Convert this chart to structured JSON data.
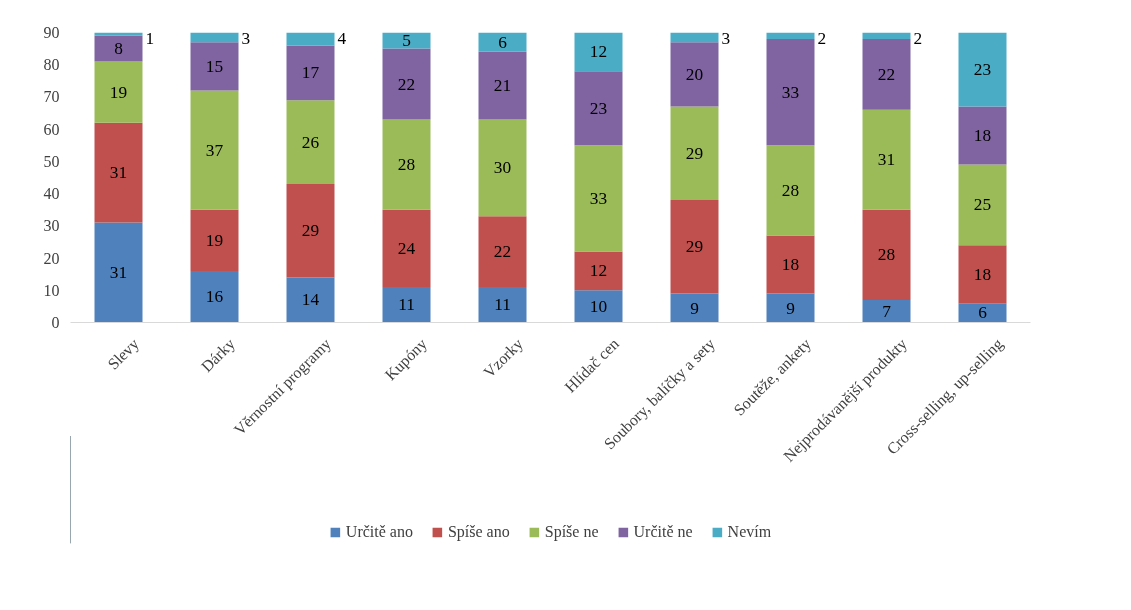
{
  "chart_data": {
    "type": "bar",
    "stacked": true,
    "data_labels": true,
    "grid": false,
    "legend": "bottom",
    "categories": [
      "Slevy",
      "Dárky",
      "Věrnostní programy",
      "Kupóny",
      "Vzorky",
      "Hlídač cen",
      "Soubory, balíčky a sety",
      "Soutěže, ankety",
      "Nejprodávanější produkty",
      "Cross-selling, up-selling"
    ],
    "ylim": [
      0,
      90
    ],
    "yticks": [
      0,
      10,
      20,
      30,
      40,
      50,
      60,
      70,
      80,
      90
    ],
    "series": [
      {
        "name": "Určitě ano",
        "color": "#4f81bd",
        "values": [
          31,
          16,
          14,
          11,
          11,
          10,
          9,
          9,
          7,
          6
        ]
      },
      {
        "name": "Spíše ano",
        "color": "#c0504d",
        "values": [
          31,
          19,
          29,
          24,
          22,
          12,
          29,
          18,
          28,
          18
        ]
      },
      {
        "name": "Spíše ne",
        "color": "#9bbb59",
        "values": [
          19,
          37,
          26,
          28,
          30,
          33,
          29,
          28,
          31,
          25
        ]
      },
      {
        "name": "Určitě ne",
        "color": "#8064a2",
        "values": [
          8,
          15,
          17,
          22,
          21,
          23,
          20,
          33,
          22,
          18
        ]
      },
      {
        "name": "Nevím",
        "color": "#4bacc6",
        "values": [
          1,
          3,
          4,
          5,
          6,
          12,
          3,
          2,
          2,
          23
        ]
      }
    ]
  }
}
